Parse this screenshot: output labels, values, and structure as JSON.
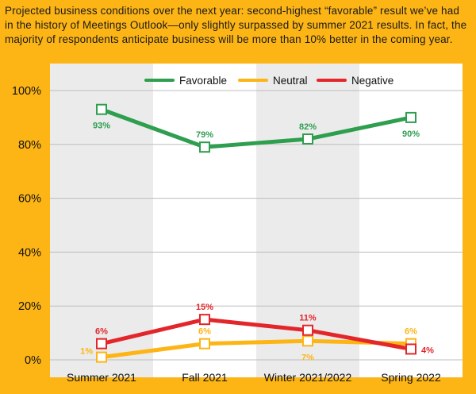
{
  "caption": "Projected business conditions over the next year: second-highest “favorable” result we’ve had in the history of Meetings Outlook—only slightly surpassed by summer 2021 results. In fact, the majority of respondents anticipate business will be more than 10% better in the coming year.",
  "colors": {
    "page_background": "#FDB515",
    "panel": "#FFFFFF",
    "band": "#EBEBEB",
    "grid": "#BDBDBD"
  },
  "chart_data": {
    "type": "line",
    "categories": [
      "Summer 2021",
      "Fall 2021",
      "Winter 2021/2022",
      "Spring 2022"
    ],
    "ylim": [
      0,
      100
    ],
    "yticks": [
      0,
      20,
      40,
      60,
      80,
      100
    ],
    "ytick_labels": [
      "0%",
      "20%",
      "40%",
      "60%",
      "80%",
      "100%"
    ],
    "grid": true,
    "shaded_categories": [
      0,
      2
    ],
    "legend_position": "top",
    "marker": "square",
    "series": [
      {
        "name": "Favorable",
        "color": "#2E9E4F",
        "values": [
          93,
          79,
          82,
          90
        ],
        "labels": [
          "93%",
          "79%",
          "82%",
          "90%"
        ],
        "label_placement": [
          "below",
          "above",
          "above",
          "below"
        ]
      },
      {
        "name": "Neutral",
        "color": "#FDB515",
        "values": [
          1,
          6,
          7,
          6
        ],
        "labels": [
          "1%",
          "6%",
          "7%",
          "6%"
        ],
        "label_placement": [
          "left",
          "above",
          "below",
          "above"
        ]
      },
      {
        "name": "Negative",
        "color": "#E3262A",
        "values": [
          6,
          15,
          11,
          4
        ],
        "labels": [
          "6%",
          "15%",
          "11%",
          "4%"
        ],
        "label_placement": [
          "above",
          "above",
          "above",
          "right"
        ]
      }
    ]
  }
}
